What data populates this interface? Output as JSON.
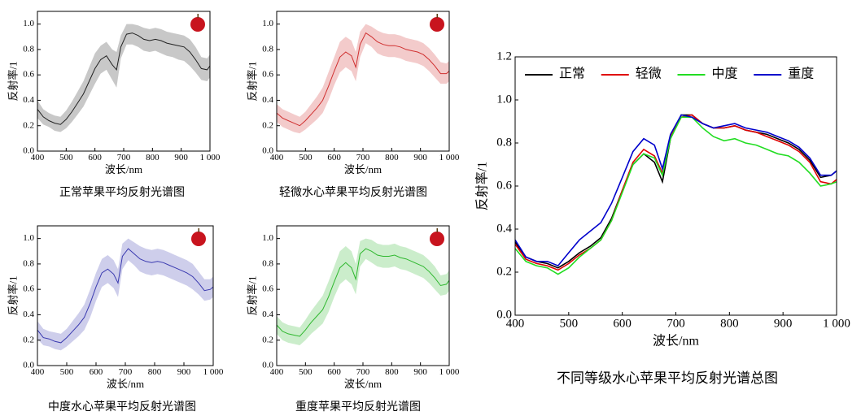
{
  "chart_data": [
    {
      "type": "line",
      "title": "正常苹果平均反射光谱图",
      "xlabel": "波长/nm",
      "ylabel": "反射率/1",
      "x": [
        400,
        420,
        440,
        460,
        480,
        500,
        520,
        540,
        560,
        580,
        600,
        620,
        640,
        660,
        675,
        690,
        710,
        730,
        750,
        770,
        790,
        810,
        830,
        850,
        870,
        890,
        910,
        930,
        950,
        970,
        990,
        1000
      ],
      "xlim": [
        400,
        1000
      ],
      "ylim": [
        0,
        1.1
      ],
      "xticks": [
        400,
        500,
        600,
        700,
        800,
        900,
        {
          "value": 1000,
          "label": "1 000"
        }
      ],
      "yticks": [
        {
          "value": 0,
          "label": "0.0"
        },
        0.2,
        0.4,
        0.6,
        0.8,
        {
          "value": 1,
          "label": "1.0"
        }
      ],
      "series": [
        {
          "color": "#222222",
          "values": [
            0.33,
            0.27,
            0.24,
            0.22,
            0.21,
            0.25,
            0.31,
            0.38,
            0.45,
            0.55,
            0.65,
            0.72,
            0.75,
            0.68,
            0.64,
            0.82,
            0.92,
            0.93,
            0.91,
            0.88,
            0.87,
            0.88,
            0.87,
            0.85,
            0.84,
            0.83,
            0.82,
            0.78,
            0.72,
            0.65,
            0.64,
            0.67
          ],
          "lower": [
            0.26,
            0.21,
            0.19,
            0.16,
            0.15,
            0.18,
            0.23,
            0.29,
            0.35,
            0.44,
            0.53,
            0.61,
            0.64,
            0.56,
            0.5,
            0.73,
            0.84,
            0.84,
            0.82,
            0.79,
            0.78,
            0.79,
            0.77,
            0.75,
            0.74,
            0.72,
            0.71,
            0.67,
            0.62,
            0.56,
            0.55,
            0.58
          ],
          "upper": [
            0.4,
            0.33,
            0.3,
            0.28,
            0.27,
            0.32,
            0.39,
            0.47,
            0.55,
            0.66,
            0.77,
            0.83,
            0.86,
            0.8,
            0.78,
            0.91,
            1.0,
            1.0,
            0.99,
            0.97,
            0.96,
            0.97,
            0.96,
            0.94,
            0.93,
            0.92,
            0.91,
            0.88,
            0.82,
            0.74,
            0.73,
            0.76
          ]
        }
      ]
    },
    {
      "type": "line",
      "title": "轻微水心苹果平均反射光谱图",
      "xlabel": "波长/nm",
      "ylabel": "反射率/1",
      "x": [
        400,
        420,
        440,
        460,
        480,
        500,
        520,
        540,
        560,
        580,
        600,
        620,
        640,
        660,
        675,
        690,
        710,
        730,
        750,
        770,
        790,
        810,
        830,
        850,
        870,
        890,
        910,
        930,
        950,
        970,
        990,
        1000
      ],
      "xlim": [
        400,
        1000
      ],
      "ylim": [
        0,
        1.1
      ],
      "xticks": [
        400,
        500,
        600,
        700,
        800,
        900,
        {
          "value": 1000,
          "label": "1 000"
        }
      ],
      "yticks": [
        {
          "value": 0,
          "label": "0.0"
        },
        0.2,
        0.4,
        0.6,
        0.8,
        {
          "value": 1,
          "label": "1.0"
        }
      ],
      "series": [
        {
          "color": "#d03030",
          "values": [
            0.3,
            0.26,
            0.24,
            0.22,
            0.2,
            0.24,
            0.29,
            0.34,
            0.4,
            0.51,
            0.63,
            0.74,
            0.78,
            0.75,
            0.66,
            0.84,
            0.93,
            0.9,
            0.86,
            0.84,
            0.83,
            0.83,
            0.82,
            0.8,
            0.79,
            0.78,
            0.76,
            0.72,
            0.67,
            0.61,
            0.61,
            0.63
          ],
          "lower": [
            0.23,
            0.19,
            0.17,
            0.15,
            0.14,
            0.17,
            0.21,
            0.25,
            0.3,
            0.4,
            0.52,
            0.62,
            0.66,
            0.63,
            0.55,
            0.74,
            0.85,
            0.82,
            0.77,
            0.75,
            0.74,
            0.74,
            0.73,
            0.71,
            0.7,
            0.69,
            0.67,
            0.63,
            0.58,
            0.53,
            0.53,
            0.55
          ],
          "upper": [
            0.37,
            0.33,
            0.31,
            0.29,
            0.27,
            0.31,
            0.37,
            0.43,
            0.5,
            0.62,
            0.74,
            0.86,
            0.9,
            0.87,
            0.78,
            0.94,
            1.0,
            0.98,
            0.95,
            0.93,
            0.92,
            0.92,
            0.91,
            0.89,
            0.88,
            0.87,
            0.85,
            0.81,
            0.76,
            0.7,
            0.69,
            0.71
          ]
        }
      ]
    },
    {
      "type": "line",
      "title": "中度水心苹果平均反射光谱图",
      "xlabel": "波长/nm",
      "ylabel": "反射率/1",
      "x": [
        400,
        420,
        440,
        460,
        480,
        500,
        520,
        540,
        560,
        580,
        600,
        620,
        640,
        660,
        675,
        690,
        710,
        730,
        750,
        770,
        790,
        810,
        830,
        850,
        870,
        890,
        910,
        930,
        950,
        970,
        990,
        1000
      ],
      "xlim": [
        400,
        1000
      ],
      "ylim": [
        0,
        1.1
      ],
      "xticks": [
        400,
        500,
        600,
        700,
        800,
        900,
        {
          "value": 1000,
          "label": "1 000"
        }
      ],
      "yticks": [
        {
          "value": 0,
          "label": "0.0"
        },
        0.2,
        0.4,
        0.6,
        0.8,
        {
          "value": 1,
          "label": "1.0"
        }
      ],
      "series": [
        {
          "color": "#3a3ab0",
          "values": [
            0.28,
            0.22,
            0.21,
            0.19,
            0.18,
            0.22,
            0.27,
            0.32,
            0.38,
            0.49,
            0.62,
            0.73,
            0.76,
            0.72,
            0.65,
            0.86,
            0.92,
            0.88,
            0.84,
            0.82,
            0.81,
            0.82,
            0.81,
            0.79,
            0.77,
            0.75,
            0.73,
            0.7,
            0.65,
            0.59,
            0.6,
            0.62
          ],
          "lower": [
            0.21,
            0.16,
            0.15,
            0.13,
            0.12,
            0.15,
            0.19,
            0.23,
            0.28,
            0.38,
            0.51,
            0.62,
            0.65,
            0.61,
            0.54,
            0.76,
            0.83,
            0.79,
            0.74,
            0.72,
            0.71,
            0.72,
            0.71,
            0.69,
            0.67,
            0.65,
            0.63,
            0.6,
            0.56,
            0.51,
            0.52,
            0.54
          ],
          "upper": [
            0.35,
            0.29,
            0.27,
            0.26,
            0.25,
            0.29,
            0.35,
            0.41,
            0.48,
            0.6,
            0.73,
            0.84,
            0.87,
            0.83,
            0.76,
            0.96,
            1.0,
            0.97,
            0.94,
            0.92,
            0.91,
            0.92,
            0.91,
            0.89,
            0.87,
            0.85,
            0.83,
            0.8,
            0.74,
            0.68,
            0.68,
            0.7
          ]
        }
      ]
    },
    {
      "type": "line",
      "title": "重度苹果平均反射光谱图",
      "xlabel": "波长/nm",
      "ylabel": "反射率/1",
      "x": [
        400,
        420,
        440,
        460,
        480,
        500,
        520,
        540,
        560,
        580,
        600,
        620,
        640,
        660,
        675,
        690,
        710,
        730,
        750,
        770,
        790,
        810,
        830,
        850,
        870,
        890,
        910,
        930,
        950,
        970,
        990,
        1000
      ],
      "xlim": [
        400,
        1000
      ],
      "ylim": [
        0,
        1.1
      ],
      "xticks": [
        400,
        500,
        600,
        700,
        800,
        900,
        {
          "value": 1000,
          "label": "1 000"
        }
      ],
      "yticks": [
        {
          "value": 0,
          "label": "0.0"
        },
        0.2,
        0.4,
        0.6,
        0.8,
        {
          "value": 1,
          "label": "1.0"
        }
      ],
      "series": [
        {
          "color": "#2fb82f",
          "values": [
            0.32,
            0.27,
            0.25,
            0.24,
            0.23,
            0.28,
            0.34,
            0.39,
            0.44,
            0.54,
            0.66,
            0.77,
            0.81,
            0.77,
            0.68,
            0.88,
            0.92,
            0.9,
            0.87,
            0.86,
            0.86,
            0.87,
            0.85,
            0.84,
            0.82,
            0.8,
            0.78,
            0.74,
            0.69,
            0.63,
            0.64,
            0.67
          ],
          "lower": [
            0.25,
            0.2,
            0.18,
            0.17,
            0.16,
            0.2,
            0.25,
            0.29,
            0.33,
            0.42,
            0.54,
            0.64,
            0.68,
            0.64,
            0.56,
            0.78,
            0.84,
            0.81,
            0.78,
            0.77,
            0.77,
            0.78,
            0.76,
            0.75,
            0.73,
            0.71,
            0.69,
            0.65,
            0.6,
            0.55,
            0.56,
            0.59
          ],
          "upper": [
            0.39,
            0.34,
            0.32,
            0.31,
            0.3,
            0.36,
            0.43,
            0.49,
            0.55,
            0.66,
            0.78,
            0.9,
            0.94,
            0.9,
            0.8,
            0.98,
            1.0,
            0.99,
            0.96,
            0.95,
            0.95,
            0.96,
            0.94,
            0.93,
            0.91,
            0.89,
            0.87,
            0.83,
            0.78,
            0.71,
            0.72,
            0.75
          ]
        }
      ]
    },
    {
      "type": "line",
      "title": "不同等级水心苹果平均反射光谱总图",
      "xlabel": "波长/nm",
      "ylabel": "反射率/1",
      "legend": "top",
      "x": [
        400,
        420,
        440,
        460,
        480,
        500,
        520,
        540,
        560,
        580,
        600,
        620,
        640,
        660,
        675,
        690,
        710,
        730,
        750,
        770,
        790,
        810,
        830,
        850,
        870,
        890,
        910,
        930,
        950,
        970,
        990,
        1000
      ],
      "xlim": [
        400,
        1000
      ],
      "ylim": [
        0,
        1.2
      ],
      "xticks": [
        400,
        500,
        600,
        700,
        800,
        900,
        {
          "value": 1000,
          "label": "1 000"
        }
      ],
      "yticks": [
        {
          "value": 0,
          "label": "0.0"
        },
        0.2,
        0.4,
        0.6,
        0.8,
        {
          "value": 1,
          "label": "1.0"
        },
        1.2
      ],
      "series": [
        {
          "name": "正常",
          "color": "#000000",
          "values": [
            0.34,
            0.27,
            0.25,
            0.24,
            0.22,
            0.25,
            0.29,
            0.32,
            0.36,
            0.45,
            0.58,
            0.7,
            0.75,
            0.71,
            0.62,
            0.82,
            0.93,
            0.93,
            0.89,
            0.87,
            0.87,
            0.88,
            0.86,
            0.85,
            0.84,
            0.82,
            0.8,
            0.77,
            0.72,
            0.64,
            0.65,
            0.67
          ]
        },
        {
          "name": "轻微",
          "color": "#e00000",
          "values": [
            0.33,
            0.26,
            0.24,
            0.23,
            0.21,
            0.24,
            0.28,
            0.31,
            0.35,
            0.44,
            0.58,
            0.71,
            0.77,
            0.74,
            0.66,
            0.83,
            0.92,
            0.93,
            0.89,
            0.87,
            0.87,
            0.88,
            0.86,
            0.85,
            0.83,
            0.81,
            0.79,
            0.76,
            0.71,
            0.62,
            0.61,
            0.63
          ]
        },
        {
          "name": "中度",
          "color": "#22dd22",
          "values": [
            0.31,
            0.25,
            0.23,
            0.22,
            0.19,
            0.22,
            0.27,
            0.31,
            0.35,
            0.44,
            0.57,
            0.7,
            0.75,
            0.73,
            0.65,
            0.82,
            0.92,
            0.92,
            0.87,
            0.83,
            0.81,
            0.82,
            0.8,
            0.79,
            0.77,
            0.75,
            0.74,
            0.71,
            0.66,
            0.6,
            0.61,
            0.62
          ]
        },
        {
          "name": "重度",
          "color": "#0000cc",
          "values": [
            0.35,
            0.27,
            0.25,
            0.25,
            0.23,
            0.29,
            0.35,
            0.39,
            0.43,
            0.52,
            0.64,
            0.76,
            0.82,
            0.79,
            0.68,
            0.84,
            0.93,
            0.92,
            0.89,
            0.87,
            0.88,
            0.89,
            0.87,
            0.86,
            0.85,
            0.83,
            0.81,
            0.78,
            0.73,
            0.65,
            0.65,
            0.67
          ]
        }
      ]
    }
  ]
}
